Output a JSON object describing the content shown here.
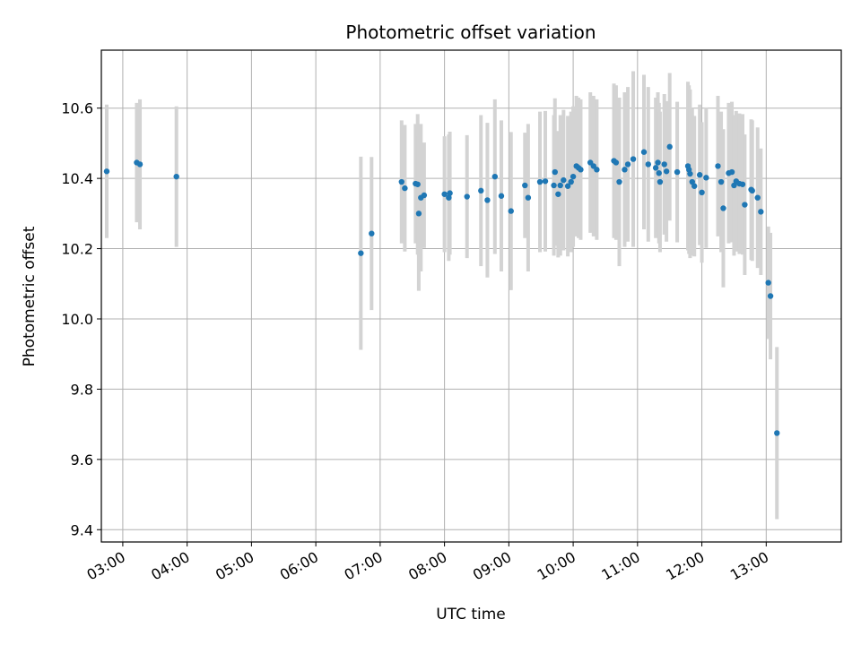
{
  "chart_data": {
    "type": "scatter",
    "title": "Photometric offset variation",
    "xlabel": "UTC time",
    "ylabel": "Photometric offset",
    "grid": true,
    "xlim": [
      "02:40",
      "14:10"
    ],
    "ylim": [
      9.365,
      10.765
    ],
    "x_ticks": [
      "03:00",
      "04:00",
      "05:00",
      "06:00",
      "07:00",
      "08:00",
      "09:00",
      "10:00",
      "11:00",
      "12:00",
      "13:00"
    ],
    "y_ticks": [
      "9.4",
      "9.6",
      "9.8",
      "10.0",
      "10.2",
      "10.4",
      "10.6"
    ],
    "colors": {
      "marker": "#1f77b4",
      "errorbar": "#d3d3d3",
      "grid": "#b0b0b0"
    },
    "points": [
      {
        "x": "02:45",
        "y": 10.42,
        "err": 0.19
      },
      {
        "x": "03:13",
        "y": 10.445,
        "err": 0.17
      },
      {
        "x": "03:16",
        "y": 10.44,
        "err": 0.185
      },
      {
        "x": "03:50",
        "y": 10.405,
        "err": 0.2
      },
      {
        "x": "06:42",
        "y": 10.187,
        "err": 0.275
      },
      {
        "x": "06:52",
        "y": 10.243,
        "err": 0.218
      },
      {
        "x": "07:20",
        "y": 10.39,
        "err": 0.175
      },
      {
        "x": "07:23",
        "y": 10.372,
        "err": 0.18
      },
      {
        "x": "07:33",
        "y": 10.385,
        "err": 0.17
      },
      {
        "x": "07:35",
        "y": 10.383,
        "err": 0.2
      },
      {
        "x": "07:36",
        "y": 10.3,
        "err": 0.22
      },
      {
        "x": "07:38",
        "y": 10.345,
        "err": 0.21
      },
      {
        "x": "07:41",
        "y": 10.352,
        "err": 0.15
      },
      {
        "x": "08:00",
        "y": 10.355,
        "err": 0.165
      },
      {
        "x": "08:04",
        "y": 10.345,
        "err": 0.18
      },
      {
        "x": "08:05",
        "y": 10.358,
        "err": 0.175
      },
      {
        "x": "08:21",
        "y": 10.348,
        "err": 0.175
      },
      {
        "x": "08:34",
        "y": 10.365,
        "err": 0.215
      },
      {
        "x": "08:40",
        "y": 10.338,
        "err": 0.22
      },
      {
        "x": "08:47",
        "y": 10.405,
        "err": 0.22
      },
      {
        "x": "08:53",
        "y": 10.35,
        "err": 0.215
      },
      {
        "x": "09:02",
        "y": 10.307,
        "err": 0.225
      },
      {
        "x": "09:15",
        "y": 10.38,
        "err": 0.15
      },
      {
        "x": "09:18",
        "y": 10.345,
        "err": 0.21
      },
      {
        "x": "09:29",
        "y": 10.39,
        "err": 0.2
      },
      {
        "x": "09:34",
        "y": 10.392,
        "err": 0.2
      },
      {
        "x": "09:42",
        "y": 10.38,
        "err": 0.2
      },
      {
        "x": "09:43",
        "y": 10.418,
        "err": 0.21
      },
      {
        "x": "09:46",
        "y": 10.355,
        "err": 0.18
      },
      {
        "x": "09:48",
        "y": 10.38,
        "err": 0.2
      },
      {
        "x": "09:51",
        "y": 10.395,
        "err": 0.2
      },
      {
        "x": "09:55",
        "y": 10.378,
        "err": 0.2
      },
      {
        "x": "09:58",
        "y": 10.39,
        "err": 0.2
      },
      {
        "x": "10:00",
        "y": 10.405,
        "err": 0.2
      },
      {
        "x": "10:03",
        "y": 10.435,
        "err": 0.2
      },
      {
        "x": "10:05",
        "y": 10.43,
        "err": 0.2
      },
      {
        "x": "10:07",
        "y": 10.425,
        "err": 0.2
      },
      {
        "x": "10:16",
        "y": 10.445,
        "err": 0.2
      },
      {
        "x": "10:19",
        "y": 10.435,
        "err": 0.2
      },
      {
        "x": "10:22",
        "y": 10.425,
        "err": 0.2
      },
      {
        "x": "10:38",
        "y": 10.45,
        "err": 0.22
      },
      {
        "x": "10:40",
        "y": 10.445,
        "err": 0.22
      },
      {
        "x": "10:43",
        "y": 10.39,
        "err": 0.24
      },
      {
        "x": "10:48",
        "y": 10.425,
        "err": 0.22
      },
      {
        "x": "10:51",
        "y": 10.44,
        "err": 0.22
      },
      {
        "x": "10:56",
        "y": 10.455,
        "err": 0.25
      },
      {
        "x": "11:06",
        "y": 10.475,
        "err": 0.22
      },
      {
        "x": "11:10",
        "y": 10.44,
        "err": 0.22
      },
      {
        "x": "11:17",
        "y": 10.43,
        "err": 0.2
      },
      {
        "x": "11:19",
        "y": 10.445,
        "err": 0.2
      },
      {
        "x": "11:20",
        "y": 10.415,
        "err": 0.2
      },
      {
        "x": "11:21",
        "y": 10.39,
        "err": 0.2
      },
      {
        "x": "11:25",
        "y": 10.44,
        "err": 0.2
      },
      {
        "x": "11:27",
        "y": 10.42,
        "err": 0.2
      },
      {
        "x": "11:30",
        "y": 10.49,
        "err": 0.21
      },
      {
        "x": "11:37",
        "y": 10.418,
        "err": 0.2
      },
      {
        "x": "11:47",
        "y": 10.435,
        "err": 0.24
      },
      {
        "x": "11:48",
        "y": 10.425,
        "err": 0.24
      },
      {
        "x": "11:49",
        "y": 10.413,
        "err": 0.24
      },
      {
        "x": "11:51",
        "y": 10.39,
        "err": 0.21
      },
      {
        "x": "11:53",
        "y": 10.378,
        "err": 0.2
      },
      {
        "x": "11:58",
        "y": 10.41,
        "err": 0.2
      },
      {
        "x": "12:00",
        "y": 10.36,
        "err": 0.2
      },
      {
        "x": "12:04",
        "y": 10.402,
        "err": 0.2
      },
      {
        "x": "12:15",
        "y": 10.435,
        "err": 0.2
      },
      {
        "x": "12:18",
        "y": 10.39,
        "err": 0.2
      },
      {
        "x": "12:20",
        "y": 10.315,
        "err": 0.225
      },
      {
        "x": "12:25",
        "y": 10.415,
        "err": 0.2
      },
      {
        "x": "12:28",
        "y": 10.418,
        "err": 0.2
      },
      {
        "x": "12:30",
        "y": 10.38,
        "err": 0.2
      },
      {
        "x": "12:32",
        "y": 10.392,
        "err": 0.2
      },
      {
        "x": "12:35",
        "y": 10.385,
        "err": 0.2
      },
      {
        "x": "12:38",
        "y": 10.383,
        "err": 0.2
      },
      {
        "x": "12:40",
        "y": 10.325,
        "err": 0.2
      },
      {
        "x": "12:46",
        "y": 10.368,
        "err": 0.2
      },
      {
        "x": "12:47",
        "y": 10.365,
        "err": 0.2
      },
      {
        "x": "12:52",
        "y": 10.345,
        "err": 0.2
      },
      {
        "x": "12:55",
        "y": 10.305,
        "err": 0.18
      },
      {
        "x": "13:02",
        "y": 10.103,
        "err": 0.16
      },
      {
        "x": "13:04",
        "y": 10.065,
        "err": 0.18
      },
      {
        "x": "13:10",
        "y": 9.675,
        "err": 0.245
      }
    ]
  }
}
